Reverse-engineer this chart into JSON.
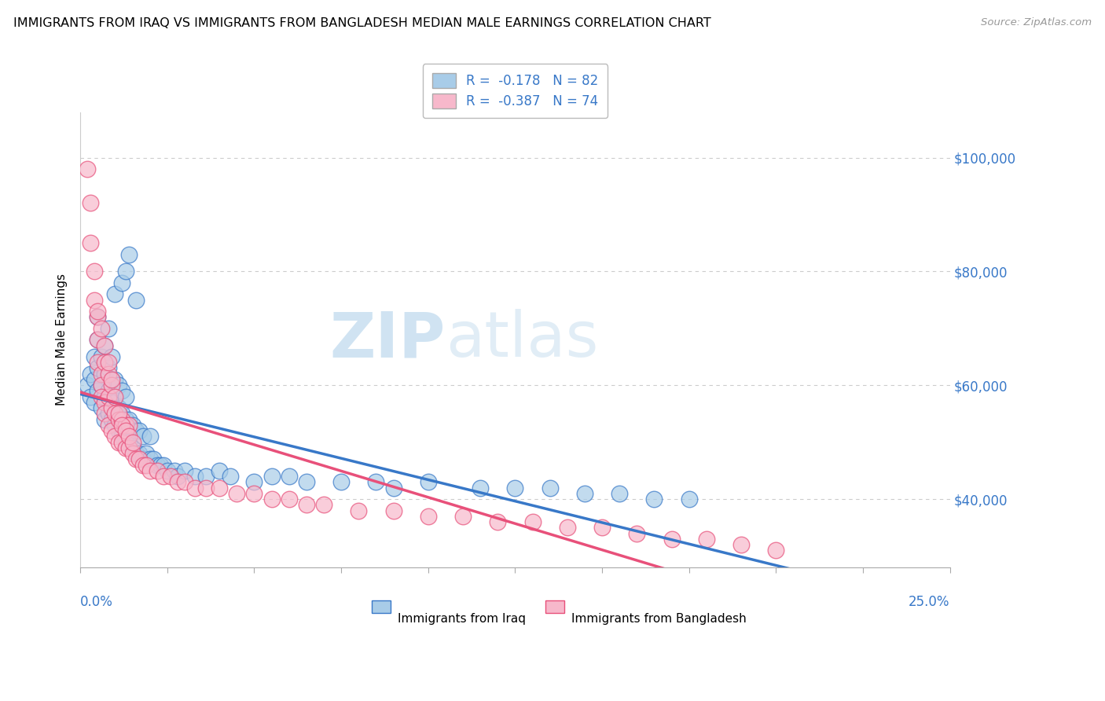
{
  "title": "IMMIGRANTS FROM IRAQ VS IMMIGRANTS FROM BANGLADESH MEDIAN MALE EARNINGS CORRELATION CHART",
  "source": "Source: ZipAtlas.com",
  "ylabel": "Median Male Earnings",
  "y_tick_labels": [
    "$40,000",
    "$60,000",
    "$80,000",
    "$100,000"
  ],
  "y_tick_values": [
    40000,
    60000,
    80000,
    100000
  ],
  "xlim": [
    0.0,
    0.25
  ],
  "ylim": [
    28000,
    108000
  ],
  "legend_iraq": "R =  -0.178   N = 82",
  "legend_bangladesh": "R =  -0.387   N = 74",
  "iraq_color": "#A8CCE8",
  "bangladesh_color": "#F7B8CB",
  "iraq_line_color": "#3878C8",
  "bangladesh_line_color": "#E8507A",
  "iraq_R": -0.178,
  "iraq_N": 82,
  "bangladesh_R": -0.387,
  "bangladesh_N": 74,
  "iraq_x": [
    0.002,
    0.003,
    0.003,
    0.004,
    0.004,
    0.004,
    0.005,
    0.005,
    0.005,
    0.005,
    0.006,
    0.006,
    0.006,
    0.007,
    0.007,
    0.007,
    0.007,
    0.008,
    0.008,
    0.008,
    0.008,
    0.009,
    0.009,
    0.009,
    0.009,
    0.01,
    0.01,
    0.01,
    0.011,
    0.011,
    0.011,
    0.012,
    0.012,
    0.012,
    0.013,
    0.013,
    0.013,
    0.014,
    0.014,
    0.015,
    0.015,
    0.016,
    0.016,
    0.017,
    0.017,
    0.018,
    0.018,
    0.019,
    0.02,
    0.02,
    0.021,
    0.022,
    0.023,
    0.024,
    0.025,
    0.027,
    0.028,
    0.03,
    0.033,
    0.036,
    0.04,
    0.043,
    0.05,
    0.055,
    0.06,
    0.065,
    0.075,
    0.085,
    0.09,
    0.1,
    0.115,
    0.125,
    0.135,
    0.145,
    0.155,
    0.165,
    0.175,
    0.01,
    0.012,
    0.013,
    0.014,
    0.016
  ],
  "iraq_y": [
    60000,
    58000,
    62000,
    57000,
    61000,
    65000,
    59000,
    63000,
    68000,
    72000,
    56000,
    60000,
    65000,
    54000,
    58000,
    62000,
    67000,
    55000,
    59000,
    63000,
    70000,
    54000,
    57000,
    61000,
    65000,
    53000,
    57000,
    61000,
    52000,
    56000,
    60000,
    51000,
    55000,
    59000,
    50000,
    54000,
    58000,
    50000,
    54000,
    49000,
    53000,
    48000,
    52000,
    48000,
    52000,
    47000,
    51000,
    48000,
    47000,
    51000,
    47000,
    46000,
    46000,
    46000,
    45000,
    45000,
    44000,
    45000,
    44000,
    44000,
    45000,
    44000,
    43000,
    44000,
    44000,
    43000,
    43000,
    43000,
    42000,
    43000,
    42000,
    42000,
    42000,
    41000,
    41000,
    40000,
    40000,
    76000,
    78000,
    80000,
    83000,
    75000
  ],
  "bangladesh_x": [
    0.002,
    0.003,
    0.003,
    0.004,
    0.004,
    0.005,
    0.005,
    0.005,
    0.006,
    0.006,
    0.006,
    0.007,
    0.007,
    0.007,
    0.008,
    0.008,
    0.008,
    0.009,
    0.009,
    0.009,
    0.01,
    0.01,
    0.011,
    0.011,
    0.012,
    0.012,
    0.013,
    0.013,
    0.014,
    0.014,
    0.015,
    0.016,
    0.017,
    0.018,
    0.019,
    0.02,
    0.022,
    0.024,
    0.026,
    0.028,
    0.03,
    0.033,
    0.036,
    0.04,
    0.045,
    0.05,
    0.055,
    0.06,
    0.065,
    0.07,
    0.08,
    0.09,
    0.1,
    0.11,
    0.12,
    0.13,
    0.14,
    0.15,
    0.16,
    0.17,
    0.18,
    0.19,
    0.2,
    0.005,
    0.006,
    0.007,
    0.008,
    0.009,
    0.01,
    0.011,
    0.012,
    0.013,
    0.014,
    0.015
  ],
  "bangladesh_y": [
    98000,
    92000,
    85000,
    80000,
    75000,
    72000,
    68000,
    64000,
    62000,
    60000,
    58000,
    57000,
    55000,
    64000,
    53000,
    58000,
    62000,
    52000,
    56000,
    60000,
    51000,
    55000,
    50000,
    54000,
    50000,
    54000,
    49000,
    53000,
    49000,
    53000,
    48000,
    47000,
    47000,
    46000,
    46000,
    45000,
    45000,
    44000,
    44000,
    43000,
    43000,
    42000,
    42000,
    42000,
    41000,
    41000,
    40000,
    40000,
    39000,
    39000,
    38000,
    38000,
    37000,
    37000,
    36000,
    36000,
    35000,
    35000,
    34000,
    33000,
    33000,
    32000,
    31000,
    73000,
    70000,
    67000,
    64000,
    61000,
    58000,
    55000,
    53000,
    52000,
    51000,
    50000
  ]
}
